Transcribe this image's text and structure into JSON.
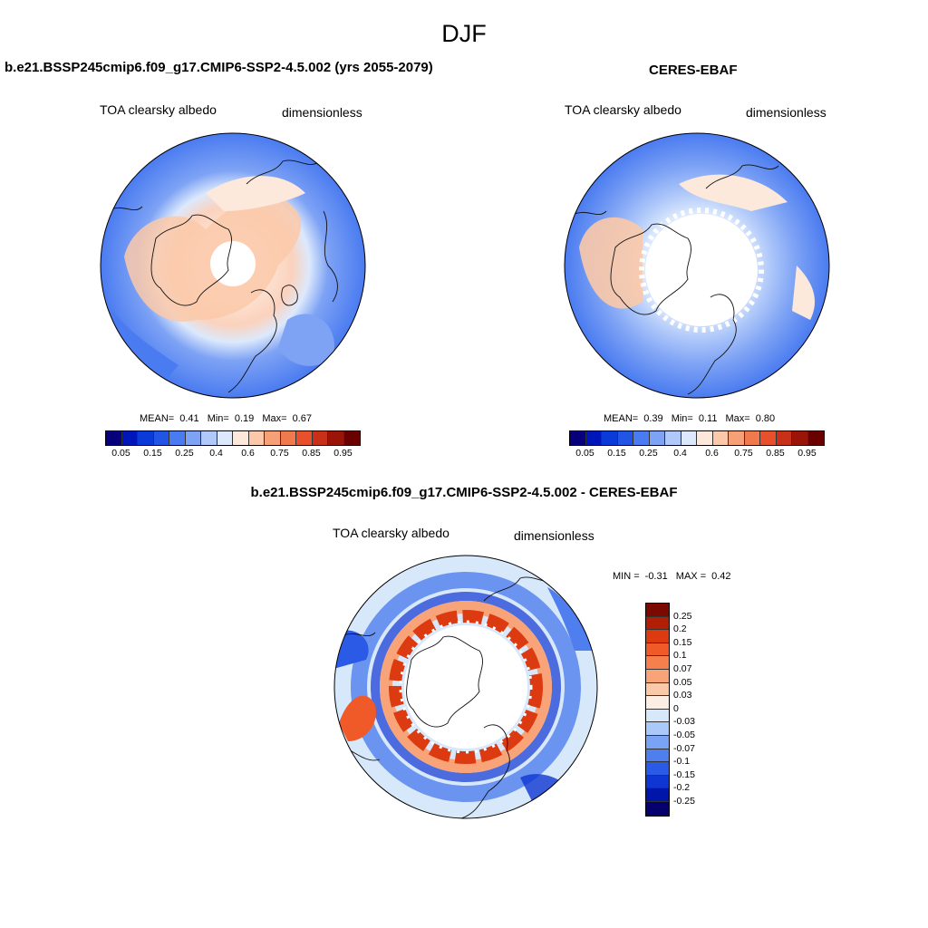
{
  "figure": {
    "season": "DJF"
  },
  "panels": [
    {
      "id": "model",
      "title": "b.e21.BSSP245cmip6.f09_g17.CMIP6-SSP2-4.5.002 (yrs 2055-2079)",
      "variable": "TOA clearsky albedo",
      "units": "dimensionless",
      "stats": {
        "mean_label": "MEAN=",
        "mean": "0.41",
        "min_label": "Min=",
        "min": "0.19",
        "max_label": "Max=",
        "max": "0.67"
      },
      "colorbar": {
        "colors": [
          "#08007a",
          "#0017b8",
          "#0a3bd9",
          "#2255e6",
          "#4a7bf0",
          "#7ea3f5",
          "#b0c9fa",
          "#dce9fc",
          "#fde9dc",
          "#fbc9a9",
          "#f7a077",
          "#f07a4d",
          "#e6502b",
          "#c8301a",
          "#9a1508",
          "#6a0000"
        ],
        "tick_labels": [
          "0.05",
          "0.15",
          "0.25",
          "0.4",
          "0.6",
          "0.75",
          "0.85",
          "0.95"
        ]
      },
      "map": {
        "projection": "north-polar-stereographic",
        "missing_data": "polar-cap"
      }
    },
    {
      "id": "obs",
      "title": "CERES-EBAF",
      "variable": "TOA clearsky albedo",
      "units": "dimensionless",
      "stats": {
        "mean_label": "MEAN=",
        "mean": "0.39",
        "min_label": "Min=",
        "min": "0.11",
        "max_label": "Max=",
        "max": "0.80"
      },
      "colorbar": {
        "colors": [
          "#08007a",
          "#0017b8",
          "#0a3bd9",
          "#2255e6",
          "#4a7bf0",
          "#7ea3f5",
          "#b0c9fa",
          "#dce9fc",
          "#fde9dc",
          "#fbc9a9",
          "#f7a077",
          "#f07a4d",
          "#e6502b",
          "#c8301a",
          "#9a1508",
          "#6a0000"
        ],
        "tick_labels": [
          "0.05",
          "0.15",
          "0.25",
          "0.4",
          "0.6",
          "0.75",
          "0.85",
          "0.95"
        ]
      },
      "map": {
        "projection": "north-polar-stereographic",
        "missing_data": "polar-cap"
      }
    },
    {
      "id": "diff",
      "title": "b.e21.BSSP245cmip6.f09_g17.CMIP6-SSP2-4.5.002 - CERES-EBAF",
      "variable": "TOA clearsky albedo",
      "units": "dimensionless",
      "stats": {
        "min_label": "MIN =",
        "min": "-0.31",
        "max_label": "MAX =",
        "max": "0.42"
      },
      "colorbar": {
        "colors": [
          "#7a0a00",
          "#b01e05",
          "#dc3a10",
          "#f05a28",
          "#f5804d",
          "#f8a478",
          "#fbc8a8",
          "#fdeee4",
          "#d8e8fb",
          "#aac8f8",
          "#7aa4f3",
          "#4f7eee",
          "#2a5ae6",
          "#0f36d2",
          "#0016a8",
          "#06006e"
        ],
        "tick_labels": [
          "0.25",
          "0.2",
          "0.15",
          "0.1",
          "0.07",
          "0.05",
          "0.03",
          "0",
          "-0.03",
          "-0.05",
          "-0.07",
          "-0.1",
          "-0.15",
          "-0.2",
          "-0.25"
        ]
      },
      "map": {
        "projection": "north-polar-stereographic",
        "missing_data": "polar-cap"
      }
    }
  ]
}
